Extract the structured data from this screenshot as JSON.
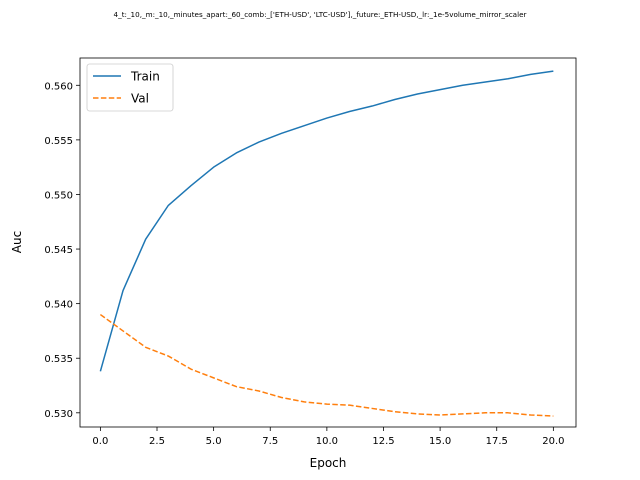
{
  "chart_data": {
    "type": "line",
    "title": "4_t:_10,_m:_10,_minutes_apart:_60_comb:_['ETH-USD', 'LTC-USD'],_future:_ETH-USD,_lr:_1e-5volume_mirror_scaler",
    "xlabel": "Epoch",
    "ylabel": "Auc",
    "xlim": [
      -0.9,
      21.0
    ],
    "ylim": [
      0.5287,
      0.5625
    ],
    "xticks": [
      0.0,
      2.5,
      5.0,
      7.5,
      10.0,
      12.5,
      15.0,
      17.5,
      20.0
    ],
    "xtick_labels": [
      "0.0",
      "2.5",
      "5.0",
      "7.5",
      "10.0",
      "12.5",
      "15.0",
      "17.5",
      "20.0"
    ],
    "yticks": [
      0.53,
      0.535,
      0.54,
      0.545,
      0.55,
      0.555,
      0.56
    ],
    "ytick_labels": [
      "0.530",
      "0.535",
      "0.540",
      "0.545",
      "0.550",
      "0.555",
      "0.560"
    ],
    "grid": false,
    "legend_position": "upper-left",
    "x": [
      0,
      1,
      2,
      3,
      4,
      5,
      6,
      7,
      8,
      9,
      10,
      11,
      12,
      13,
      14,
      15,
      16,
      17,
      18,
      19,
      20
    ],
    "series": [
      {
        "name": "Train",
        "color": "#1f77b4",
        "style": "solid",
        "values": [
          0.5338,
          0.5412,
          0.5459,
          0.549,
          0.5508,
          0.5525,
          0.5538,
          0.5548,
          0.5556,
          0.5563,
          0.557,
          0.5576,
          0.5581,
          0.5587,
          0.5592,
          0.5596,
          0.56,
          0.5603,
          0.5606,
          0.561,
          0.5613
        ]
      },
      {
        "name": "Val",
        "color": "#ff7f0e",
        "style": "dashed",
        "values": [
          0.539,
          0.5375,
          0.536,
          0.5352,
          0.534,
          0.5332,
          0.5324,
          0.532,
          0.5314,
          0.531,
          0.5308,
          0.5307,
          0.5304,
          0.5301,
          0.5299,
          0.5298,
          0.5299,
          0.53,
          0.53,
          0.5298,
          0.5297
        ]
      }
    ]
  }
}
